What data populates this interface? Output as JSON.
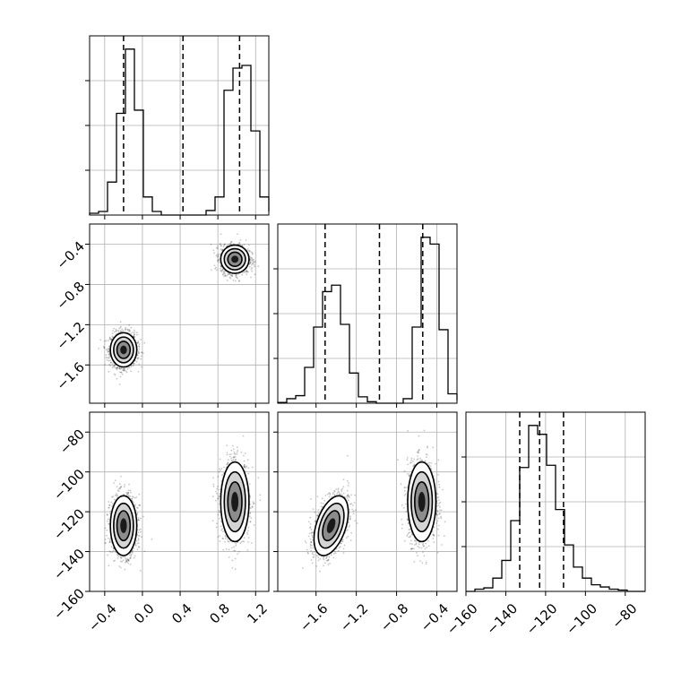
{
  "chart_data": {
    "type": "corner",
    "params": [
      "",
      "",
      ""
    ],
    "ranges": [
      [
        -0.56,
        1.34
      ],
      [
        -1.98,
        -0.2
      ],
      [
        -160,
        -70
      ]
    ],
    "ticks": [
      {
        "values": [
          -0.4,
          0.0,
          0.4,
          0.8,
          1.2
        ],
        "labels": [
          "−0.4",
          "0.0",
          "0.4",
          "0.8",
          "1.2"
        ]
      },
      {
        "values": [
          -1.6,
          -1.2,
          -0.8,
          -0.4
        ],
        "labels": [
          "−1.6",
          "−1.2",
          "−0.8",
          "−0.4"
        ]
      },
      {
        "values": [
          -160,
          -140,
          -120,
          -100,
          -80
        ],
        "labels": [
          "−160",
          "−140",
          "−120",
          "−100",
          "−80"
        ]
      }
    ],
    "quantile_lines": [
      [
        -0.2,
        0.43,
        1.03
      ],
      [
        -1.51,
        -0.97,
        -0.54
      ],
      [
        -133,
        -123,
        -111
      ]
    ],
    "histograms": [
      {
        "bins": [
          -0.56,
          -0.465,
          -0.37,
          -0.275,
          -0.18,
          -0.085,
          0.01,
          0.105,
          0.2,
          0.295,
          0.39,
          0.485,
          0.58,
          0.675,
          0.77,
          0.865,
          0.96,
          1.055,
          1.15,
          1.245,
          1.34
        ],
        "counts": [
          4,
          8,
          73,
          225,
          367,
          232,
          40,
          8,
          0,
          0,
          0,
          0,
          0,
          10,
          40,
          276,
          325,
          331,
          186,
          40,
          8
        ]
      },
      {
        "bins": [
          -1.98,
          -1.891,
          -1.802,
          -1.713,
          -1.624,
          -1.535,
          -1.446,
          -1.357,
          -1.268,
          -1.179,
          -1.09,
          -1.001,
          -0.912,
          -0.823,
          -0.734,
          -0.645,
          -0.556,
          -0.467,
          -0.378,
          -0.289,
          -0.2
        ],
        "counts": [
          2,
          12,
          20,
          95,
          202,
          296,
          313,
          209,
          80,
          17,
          4,
          0,
          0,
          0,
          12,
          202,
          440,
          422,
          195,
          25,
          8
        ]
      },
      {
        "bins": [
          -160,
          -155.5,
          -151,
          -146.5,
          -142,
          -137.5,
          -133,
          -128.5,
          -124,
          -119.5,
          -115,
          -110.5,
          -106,
          -101.5,
          -97,
          -92.5,
          -88,
          -83.5,
          -79,
          -74.5,
          -70
        ],
        "counts": [
          0,
          5,
          8,
          30,
          70,
          160,
          280,
          375,
          355,
          285,
          185,
          105,
          55,
          30,
          15,
          10,
          5,
          3,
          0,
          0,
          0
        ]
      }
    ],
    "clusters": [
      {
        "means": [
          -0.2,
          -1.45,
          -127
        ],
        "sds": [
          0.07,
          0.085,
          7.5
        ],
        "rho": [
          [
            1,
            0,
            0
          ],
          [
            0,
            1,
            0.45
          ],
          [
            0,
            0.45,
            1
          ]
        ]
      },
      {
        "means": [
          0.98,
          -0.55,
          -115
        ],
        "sds": [
          0.075,
          0.07,
          10
        ],
        "rho": [
          [
            1,
            0,
            0
          ],
          [
            0,
            1,
            0
          ],
          [
            0,
            0,
            1
          ]
        ]
      }
    ]
  }
}
